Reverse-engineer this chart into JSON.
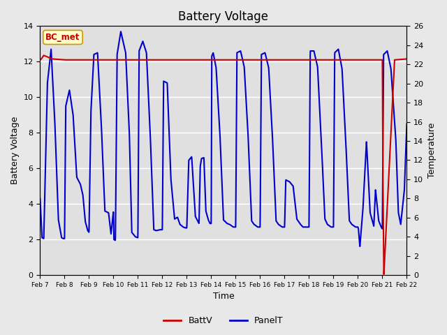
{
  "title": "Battery Voltage",
  "xlabel": "Time",
  "ylabel_left": "Battery Voltage",
  "ylabel_right": "Temperature",
  "xlim": [
    0,
    15
  ],
  "ylim_left": [
    0,
    14
  ],
  "ylim_right": [
    0,
    26
  ],
  "yticks_left": [
    0,
    2,
    4,
    6,
    8,
    10,
    12,
    14
  ],
  "yticks_right": [
    0,
    2,
    4,
    6,
    8,
    10,
    12,
    14,
    16,
    18,
    20,
    22,
    24,
    26
  ],
  "xtick_labels": [
    "Feb 7",
    "Feb 8",
    "Feb 9",
    "Feb 10",
    "Feb 11",
    "Feb 12",
    "Feb 13",
    "Feb 14",
    "Feb 15",
    "Feb 16",
    "Feb 17",
    "Feb 18",
    "Feb 19",
    "Feb 20",
    "Feb 21",
    "Feb 22"
  ],
  "background_color": "#e8e8e8",
  "plot_bg_color": "#e0e0e0",
  "grid_color": "#ffffff",
  "annotation_text": "BC_met",
  "annotation_color": "#cc0000",
  "annotation_bg": "#ffffcc",
  "legend_entries": [
    "BattV",
    "PanelT"
  ],
  "legend_colors": [
    "#cc0000",
    "#0000cc"
  ],
  "batt_color": "#cc0000",
  "panel_color": "#0000cc",
  "batt_linewidth": 1.5,
  "panel_linewidth": 1.5,
  "title_fontsize": 12,
  "axis_label_fontsize": 9,
  "panel_key_x": [
    0,
    0.08,
    0.15,
    0.3,
    0.45,
    0.6,
    0.75,
    0.88,
    0.95,
    1.0,
    1.05,
    1.2,
    1.35,
    1.5,
    1.65,
    1.75,
    1.85,
    1.95,
    2.0,
    2.08,
    2.2,
    2.35,
    2.5,
    2.65,
    2.8,
    2.9,
    3.0,
    3.02,
    3.08,
    3.15,
    3.3,
    3.5,
    3.65,
    3.75,
    3.9,
    4.0,
    4.05,
    4.2,
    4.35,
    4.5,
    4.65,
    4.75,
    4.9,
    5.0,
    5.05,
    5.2,
    5.35,
    5.5,
    5.62,
    5.72,
    5.85,
    5.95,
    6.0,
    6.08,
    6.2,
    6.35,
    6.5,
    6.55,
    6.6,
    6.7,
    6.78,
    6.88,
    6.95,
    7.0,
    7.02,
    7.08,
    7.2,
    7.35,
    7.5,
    7.65,
    7.75,
    7.9,
    8.0,
    8.05,
    8.2,
    8.35,
    8.5,
    8.65,
    8.75,
    8.9,
    9.0,
    9.05,
    9.2,
    9.35,
    9.5,
    9.65,
    9.75,
    9.9,
    10.0,
    10.05,
    10.2,
    10.35,
    10.5,
    10.65,
    10.75,
    10.9,
    11.0,
    11.05,
    11.2,
    11.35,
    11.5,
    11.65,
    11.75,
    11.9,
    12.0,
    12.05,
    12.2,
    12.35,
    12.5,
    12.65,
    12.75,
    12.9,
    13.0,
    13.02,
    13.08,
    13.2,
    13.35,
    13.5,
    13.65,
    13.72,
    13.85,
    13.95,
    14.0,
    14.05,
    14.2,
    14.35,
    14.55,
    14.65,
    14.75,
    14.9,
    15.0
  ],
  "panel_key_y": [
    4.3,
    2.1,
    2.05,
    10.8,
    12.7,
    8.7,
    3.1,
    2.1,
    2.05,
    2.05,
    9.5,
    10.4,
    9.0,
    5.5,
    5.1,
    4.5,
    3.0,
    2.5,
    2.4,
    9.2,
    12.4,
    12.5,
    8.6,
    3.6,
    3.5,
    2.3,
    3.6,
    2.0,
    1.95,
    12.4,
    13.7,
    12.5,
    8.0,
    2.4,
    2.15,
    2.1,
    12.6,
    13.15,
    12.5,
    8.1,
    2.55,
    2.5,
    2.55,
    2.55,
    10.9,
    10.8,
    5.4,
    3.15,
    3.25,
    2.85,
    2.7,
    2.65,
    2.65,
    6.45,
    6.65,
    3.3,
    2.9,
    6.1,
    6.55,
    6.6,
    3.6,
    3.1,
    2.9,
    2.9,
    12.3,
    12.5,
    11.65,
    8.1,
    3.1,
    2.9,
    2.85,
    2.7,
    2.7,
    12.5,
    12.6,
    11.7,
    8.1,
    3.05,
    2.85,
    2.7,
    2.7,
    12.4,
    12.5,
    11.65,
    7.9,
    3.05,
    2.85,
    2.7,
    2.7,
    5.35,
    5.25,
    5.0,
    3.15,
    2.85,
    2.7,
    2.7,
    2.7,
    12.6,
    12.6,
    11.7,
    7.6,
    3.15,
    2.85,
    2.7,
    2.7,
    12.5,
    12.7,
    11.6,
    7.6,
    3.05,
    2.85,
    2.7,
    2.7,
    2.6,
    1.6,
    3.6,
    7.5,
    3.5,
    2.75,
    4.8,
    3.05,
    2.7,
    2.6,
    12.4,
    12.6,
    11.6,
    7.6,
    3.55,
    2.85,
    4.8,
    8.5
  ],
  "batt_key_x": [
    0,
    0.05,
    0.1,
    0.15,
    0.5,
    1.0,
    2.0,
    3.0,
    4.0,
    5.0,
    6.0,
    7.0,
    8.0,
    9.0,
    10.0,
    11.0,
    12.0,
    13.0,
    13.95,
    14.0,
    14.02,
    14.06,
    14.5,
    15.0
  ],
  "batt_key_y": [
    12.1,
    12.15,
    12.25,
    12.35,
    12.15,
    12.1,
    12.1,
    12.1,
    12.1,
    12.1,
    12.1,
    12.1,
    12.1,
    12.1,
    12.1,
    12.1,
    12.1,
    12.1,
    12.1,
    12.1,
    6.0,
    0.0,
    12.1,
    12.15
  ]
}
